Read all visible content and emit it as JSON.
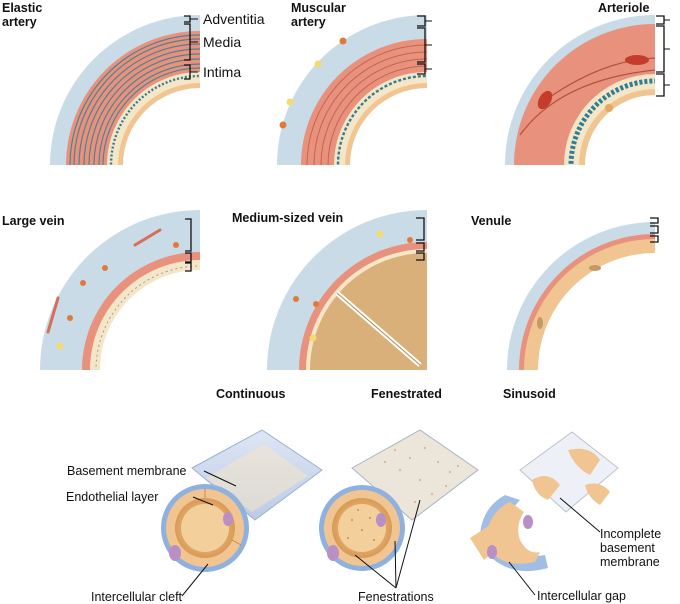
{
  "panels": {
    "elastic_artery": {
      "title_line1": "Elastic",
      "title_line2": "artery"
    },
    "muscular_artery": {
      "title_line1": "Muscular",
      "title_line2": "artery"
    },
    "arteriole": {
      "title": "Arteriole"
    },
    "large_vein": {
      "title": "Large vein"
    },
    "medium_vein": {
      "title": "Medium-sized vein"
    },
    "venule": {
      "title": "Venule"
    },
    "continuous": {
      "title": "Continuous"
    },
    "fenestrated": {
      "title": "Fenestrated"
    },
    "sinusoid": {
      "title": "Sinusoid"
    }
  },
  "layers": {
    "adventitia": "Adventitia",
    "media": "Media",
    "intima": "Intima"
  },
  "callouts": {
    "basement_membrane": "Basement membrane",
    "endothelial_layer": "Endothelial layer",
    "intercellular_cleft": "Intercellular cleft",
    "fenestrations": "Fenestrations",
    "incomplete_bm_line1": "Incomplete",
    "incomplete_bm_line2": "basement",
    "incomplete_bm_line3": "membrane",
    "intercellular_gap": "Intercellular gap"
  },
  "colors": {
    "adventitia": "#c9dbe7",
    "media": "#e8917d",
    "intima_cream": "#f6e6c8",
    "elastic_wave": "#2d7f95",
    "endothelium": "#f1c592",
    "basement_blue": "#8fb1de",
    "nucleus": "#b98fc4",
    "valve": "#d9b07a"
  }
}
